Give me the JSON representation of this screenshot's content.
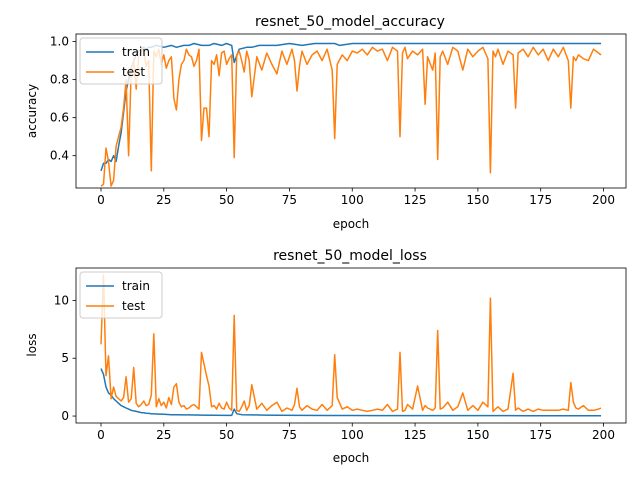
{
  "chart_data": [
    {
      "type": "line",
      "title": "resnet_50_model_accuracy",
      "xlabel": "epoch",
      "ylabel": "accuracy",
      "xlim": [
        -9.95,
        208.95
      ],
      "ylim": [
        0.23,
        1.04
      ],
      "xticks": [
        0,
        25,
        50,
        75,
        100,
        125,
        150,
        175,
        200
      ],
      "yticks": [
        0.4,
        0.6,
        0.8,
        1.0
      ],
      "ytick_labels": [
        "0.4",
        "0.6",
        "0.8",
        "1.0"
      ],
      "legend": "top-left",
      "series": [
        {
          "name": "train",
          "color": "#1f77b4",
          "x": [
            0,
            1,
            2,
            3,
            4,
            5,
            6,
            7,
            8,
            9,
            10,
            11,
            12,
            13,
            14,
            15,
            16,
            17,
            18,
            19,
            20,
            22,
            25,
            28,
            30,
            33,
            35,
            37,
            40,
            43,
            45,
            48,
            50,
            52,
            53,
            55,
            58,
            60,
            63,
            65,
            70,
            75,
            80,
            85,
            90,
            93,
            95,
            100,
            105,
            110,
            115,
            120,
            125,
            130,
            135,
            140,
            145,
            150,
            155,
            160,
            165,
            170,
            175,
            180,
            185,
            190,
            195,
            199
          ],
          "y": [
            0.32,
            0.36,
            0.36,
            0.38,
            0.37,
            0.4,
            0.37,
            0.45,
            0.52,
            0.63,
            0.74,
            0.8,
            0.86,
            0.9,
            0.93,
            0.95,
            0.96,
            0.97,
            0.96,
            0.97,
            0.97,
            0.98,
            0.97,
            0.98,
            0.97,
            0.98,
            0.98,
            0.99,
            0.98,
            0.98,
            0.99,
            0.98,
            0.99,
            0.98,
            0.89,
            0.96,
            0.97,
            0.97,
            0.98,
            0.98,
            0.98,
            0.99,
            0.98,
            0.99,
            0.99,
            0.99,
            0.98,
            0.99,
            0.99,
            0.99,
            0.99,
            0.99,
            0.99,
            0.99,
            0.99,
            0.99,
            0.99,
            0.99,
            0.99,
            0.99,
            0.99,
            0.99,
            0.99,
            0.99,
            0.99,
            0.99,
            0.99,
            0.99
          ]
        },
        {
          "name": "test",
          "color": "#ff7f0e",
          "x": [
            0,
            1,
            2,
            3,
            4,
            5,
            6,
            7,
            8,
            9,
            10,
            11,
            12,
            13,
            14,
            15,
            16,
            17,
            18,
            19,
            20,
            21,
            22,
            23,
            24,
            25,
            26,
            27,
            28,
            29,
            30,
            31,
            32,
            33,
            34,
            35,
            36,
            37,
            38,
            39,
            40,
            41,
            42,
            43,
            44,
            45,
            46,
            47,
            48,
            49,
            50,
            51,
            52,
            53,
            54,
            55,
            56,
            57,
            58,
            59,
            60,
            62,
            64,
            66,
            68,
            70,
            72,
            74,
            76,
            77,
            78,
            79,
            80,
            82,
            84,
            86,
            88,
            90,
            92,
            93,
            94,
            96,
            98,
            100,
            102,
            104,
            106,
            108,
            110,
            112,
            114,
            116,
            118,
            119,
            120,
            121,
            122,
            124,
            126,
            128,
            129,
            130,
            132,
            133,
            134,
            135,
            136,
            138,
            140,
            142,
            144,
            146,
            148,
            150,
            152,
            154,
            155,
            156,
            157,
            158,
            160,
            162,
            164,
            165,
            166,
            168,
            170,
            172,
            174,
            176,
            178,
            180,
            182,
            184,
            186,
            187,
            188,
            189,
            190,
            192,
            194,
            196,
            198,
            199
          ],
          "y": [
            0.24,
            0.25,
            0.44,
            0.37,
            0.24,
            0.27,
            0.45,
            0.5,
            0.55,
            0.65,
            0.8,
            0.4,
            0.85,
            0.9,
            0.75,
            0.92,
            0.96,
            0.95,
            0.87,
            0.9,
            0.32,
            0.95,
            0.92,
            0.96,
            0.88,
            0.93,
            0.86,
            0.9,
            0.92,
            0.7,
            0.64,
            0.8,
            0.88,
            0.9,
            0.96,
            0.93,
            0.92,
            0.87,
            0.9,
            0.96,
            0.48,
            0.65,
            0.65,
            0.5,
            0.9,
            0.88,
            0.93,
            0.82,
            0.94,
            0.95,
            0.88,
            0.91,
            0.93,
            0.39,
            0.93,
            0.95,
            0.9,
            0.84,
            0.95,
            0.9,
            0.71,
            0.92,
            0.85,
            0.94,
            0.88,
            0.83,
            0.95,
            0.88,
            0.96,
            0.9,
            0.74,
            0.87,
            0.95,
            0.88,
            0.93,
            0.95,
            0.9,
            0.96,
            0.85,
            0.49,
            0.88,
            0.93,
            0.9,
            0.95,
            0.94,
            0.96,
            0.93,
            0.97,
            0.95,
            0.96,
            0.9,
            0.97,
            0.95,
            0.5,
            0.94,
            0.97,
            0.91,
            0.95,
            0.93,
            0.96,
            0.67,
            0.92,
            0.85,
            0.94,
            0.38,
            0.92,
            0.95,
            0.88,
            0.97,
            0.95,
            0.85,
            0.96,
            0.92,
            0.95,
            0.97,
            0.91,
            0.31,
            0.95,
            0.92,
            0.96,
            0.88,
            0.95,
            0.93,
            0.65,
            0.94,
            0.96,
            0.92,
            0.97,
            0.93,
            0.96,
            0.9,
            0.96,
            0.92,
            0.97,
            0.9,
            0.65,
            0.92,
            0.9,
            0.93,
            0.91,
            0.9,
            0.96,
            0.94,
            0.93
          ]
        }
      ]
    },
    {
      "type": "line",
      "title": "resnet_50_model_loss",
      "xlabel": "epoch",
      "ylabel": "loss",
      "xlim": [
        -9.95,
        208.95
      ],
      "ylim": [
        -0.6,
        12.8
      ],
      "xticks": [
        0,
        25,
        50,
        75,
        100,
        125,
        150,
        175,
        200
      ],
      "yticks": [
        0,
        5,
        10
      ],
      "ytick_labels": [
        "0",
        "5",
        "10"
      ],
      "legend": "top-left",
      "series": [
        {
          "name": "train",
          "color": "#1f77b4",
          "x": [
            0,
            1,
            2,
            3,
            4,
            5,
            6,
            7,
            8,
            9,
            10,
            11,
            12,
            13,
            14,
            15,
            16,
            17,
            18,
            19,
            20,
            22,
            25,
            28,
            30,
            33,
            35,
            40,
            45,
            50,
            52,
            53,
            54,
            56,
            60,
            65,
            70,
            80,
            90,
            100,
            110,
            120,
            130,
            140,
            150,
            160,
            170,
            180,
            190,
            199
          ],
          "y": [
            4.1,
            3.6,
            2.5,
            2.0,
            1.8,
            1.5,
            1.3,
            1.1,
            0.9,
            0.8,
            0.7,
            0.6,
            0.5,
            0.45,
            0.4,
            0.35,
            0.3,
            0.28,
            0.25,
            0.23,
            0.2,
            0.18,
            0.15,
            0.12,
            0.12,
            0.1,
            0.1,
            0.08,
            0.07,
            0.06,
            0.06,
            0.6,
            0.2,
            0.12,
            0.1,
            0.08,
            0.07,
            0.06,
            0.05,
            0.05,
            0.04,
            0.04,
            0.04,
            0.04,
            0.04,
            0.04,
            0.03,
            0.03,
            0.03,
            0.03
          ]
        },
        {
          "name": "test",
          "color": "#ff7f0e",
          "x": [
            0,
            1,
            2,
            3,
            4,
            5,
            6,
            7,
            8,
            9,
            10,
            11,
            12,
            13,
            14,
            15,
            16,
            17,
            18,
            19,
            20,
            21,
            22,
            23,
            24,
            25,
            26,
            27,
            28,
            29,
            30,
            31,
            32,
            33,
            34,
            35,
            36,
            37,
            38,
            39,
            40,
            41,
            42,
            43,
            44,
            45,
            46,
            47,
            48,
            49,
            50,
            51,
            52,
            53,
            54,
            55,
            56,
            57,
            58,
            59,
            60,
            62,
            64,
            66,
            68,
            70,
            72,
            74,
            76,
            77,
            78,
            79,
            80,
            82,
            84,
            86,
            88,
            90,
            92,
            93,
            94,
            96,
            98,
            100,
            102,
            104,
            106,
            108,
            110,
            112,
            114,
            116,
            118,
            119,
            120,
            121,
            122,
            124,
            126,
            128,
            129,
            130,
            132,
            133,
            134,
            135,
            136,
            138,
            140,
            142,
            144,
            146,
            148,
            150,
            152,
            154,
            155,
            156,
            157,
            158,
            160,
            162,
            164,
            165,
            166,
            168,
            170,
            172,
            174,
            176,
            178,
            180,
            182,
            184,
            186,
            187,
            188,
            189,
            190,
            192,
            194,
            196,
            198,
            199
          ],
          "y": [
            6.2,
            12.2,
            3.5,
            5.2,
            1.5,
            2.5,
            1.7,
            1.5,
            1.3,
            1.6,
            3.4,
            1.2,
            1.5,
            4.2,
            1.1,
            0.8,
            1.0,
            1.3,
            0.9,
            1.0,
            1.8,
            7.1,
            0.8,
            1.5,
            0.9,
            1.2,
            0.7,
            1.6,
            1.0,
            2.5,
            2.8,
            1.2,
            0.8,
            0.9,
            0.6,
            0.7,
            0.9,
            1.0,
            0.8,
            0.6,
            5.5,
            4.5,
            3.5,
            2.6,
            0.8,
            0.9,
            0.6,
            1.1,
            0.7,
            0.6,
            1.2,
            0.7,
            0.5,
            8.7,
            0.5,
            0.4,
            0.8,
            1.3,
            0.5,
            0.9,
            2.7,
            0.6,
            1.1,
            0.5,
            0.9,
            1.2,
            0.4,
            0.7,
            0.5,
            1.0,
            2.4,
            0.8,
            0.5,
            0.9,
            0.6,
            0.5,
            1.0,
            0.5,
            0.9,
            5.3,
            1.6,
            0.6,
            0.8,
            0.5,
            0.6,
            0.5,
            0.4,
            0.5,
            0.6,
            0.5,
            1.0,
            0.4,
            0.6,
            5.5,
            0.4,
            0.5,
            1.0,
            0.6,
            2.6,
            0.5,
            0.9,
            0.7,
            0.5,
            0.7,
            7.4,
            0.6,
            0.7,
            1.2,
            0.5,
            0.8,
            2.0,
            0.5,
            0.9,
            0.5,
            1.2,
            0.8,
            10.2,
            0.4,
            0.6,
            0.8,
            0.4,
            0.6,
            3.7,
            0.5,
            0.7,
            0.4,
            0.6,
            0.4,
            0.6,
            0.5,
            0.5,
            0.5,
            0.5,
            0.6,
            0.5,
            2.9,
            1.2,
            0.7,
            0.6,
            0.9,
            0.5,
            0.5,
            0.6,
            0.7
          ]
        }
      ]
    }
  ]
}
